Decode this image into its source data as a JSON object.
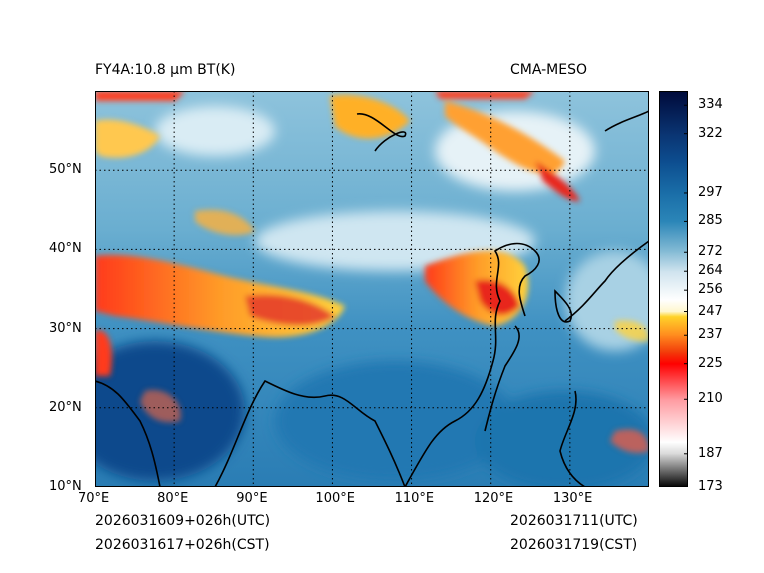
{
  "header": {
    "product_title": "FY4A:10.8 µm BT(K)",
    "model_name": "CMA-MESO"
  },
  "footer": {
    "init_utc": "2026031609+026h(UTC)",
    "init_cst": "2026031617+026h(CST)",
    "valid_utc": "2026031711(UTC)",
    "valid_cst": "2026031719(CST)"
  },
  "map": {
    "lon_min": 70,
    "lon_max": 140,
    "lat_min": 10,
    "lat_max": 60,
    "lon_ticks": [
      {
        "value": 70,
        "label": "70°E"
      },
      {
        "value": 80,
        "label": "80°E"
      },
      {
        "value": 90,
        "label": "90°E"
      },
      {
        "value": 100,
        "label": "100°E"
      },
      {
        "value": 110,
        "label": "110°E"
      },
      {
        "value": 120,
        "label": "120°E"
      },
      {
        "value": 130,
        "label": "130°E"
      }
    ],
    "lat_ticks": [
      {
        "value": 10,
        "label": "10°N"
      },
      {
        "value": 20,
        "label": "20°N"
      },
      {
        "value": 30,
        "label": "30°N"
      },
      {
        "value": 40,
        "label": "40°N"
      },
      {
        "value": 50,
        "label": "50°N"
      }
    ]
  },
  "colorbar": {
    "min": 173,
    "max": 340,
    "ticks": [
      {
        "value": 173,
        "label": "173"
      },
      {
        "value": 187,
        "label": "187"
      },
      {
        "value": 210,
        "label": "210"
      },
      {
        "value": 225,
        "label": "225"
      },
      {
        "value": 237,
        "label": "237"
      },
      {
        "value": 247,
        "label": "247"
      },
      {
        "value": 256,
        "label": "256"
      },
      {
        "value": 264,
        "label": "264"
      },
      {
        "value": 272,
        "label": "272"
      },
      {
        "value": 285,
        "label": "285"
      },
      {
        "value": 297,
        "label": "297"
      },
      {
        "value": 322,
        "label": "322"
      },
      {
        "value": 334,
        "label": "334"
      }
    ],
    "stops": [
      {
        "value": 173,
        "color": "#000000"
      },
      {
        "value": 187,
        "color": "#d8d8d8"
      },
      {
        "value": 192,
        "color": "#ffffff"
      },
      {
        "value": 210,
        "color": "#ff9aa0"
      },
      {
        "value": 225,
        "color": "#ff0000"
      },
      {
        "value": 230,
        "color": "#f23c0a"
      },
      {
        "value": 237,
        "color": "#ff8a1e"
      },
      {
        "value": 245,
        "color": "#ffd42a"
      },
      {
        "value": 247,
        "color": "#fff7cc"
      },
      {
        "value": 252,
        "color": "#ffffff"
      },
      {
        "value": 264,
        "color": "#cfe3ee"
      },
      {
        "value": 272,
        "color": "#88bdd6"
      },
      {
        "value": 285,
        "color": "#2b86b8"
      },
      {
        "value": 297,
        "color": "#1a6ea8"
      },
      {
        "value": 310,
        "color": "#0d4e90"
      },
      {
        "value": 322,
        "color": "#0a3472"
      },
      {
        "value": 340,
        "color": "#000a3a"
      }
    ]
  }
}
